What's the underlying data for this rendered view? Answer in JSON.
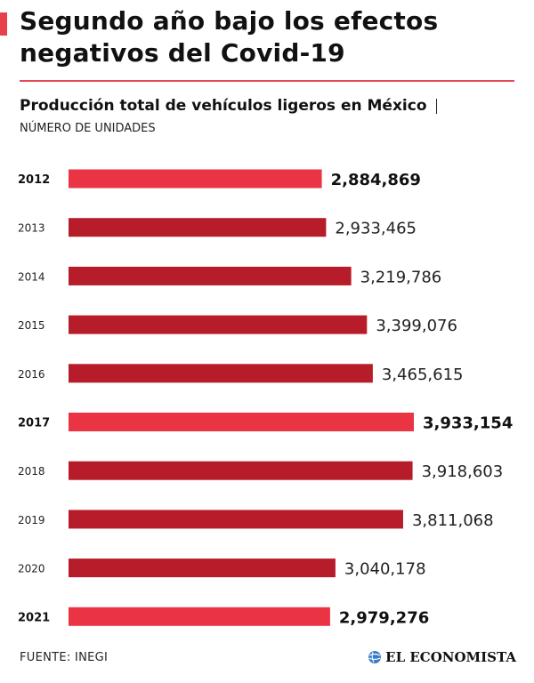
{
  "title": "Segundo año bajo los efectos negativos del Covid-19",
  "source": "FUENTE: INEGI",
  "brand": "EL ECONOMISTA",
  "colors": {
    "accent": "#e8404c",
    "bar_default": "#b71c2a",
    "bar_highlight": "#ea3444",
    "rule": "#e24b58"
  },
  "icons": {
    "brand_logo": "globe-icon"
  },
  "chart_data": {
    "type": "bar",
    "orientation": "horizontal",
    "title": "Producción total de vehículos ligeros en México",
    "subtitle": "NÚMERO DE UNIDADES",
    "categories": [
      "2012",
      "2013",
      "2014",
      "2015",
      "2016",
      "2017",
      "2018",
      "2019",
      "2020",
      "2021"
    ],
    "values": [
      2884869,
      2933465,
      3219786,
      3399076,
      3465615,
      3933154,
      3918603,
      3811068,
      3040178,
      2979276
    ],
    "value_labels": [
      "2,884,869",
      "2,933,465",
      "3,219,786",
      "3,399,076",
      "3,465,615",
      "3,933,154",
      "3,918,603",
      "3,811,068",
      "3,040,178",
      "2,979,276"
    ],
    "highlighted": [
      "2012",
      "2017",
      "2021"
    ],
    "xlabel": "",
    "ylabel": "",
    "grid": false,
    "legend": "none"
  }
}
